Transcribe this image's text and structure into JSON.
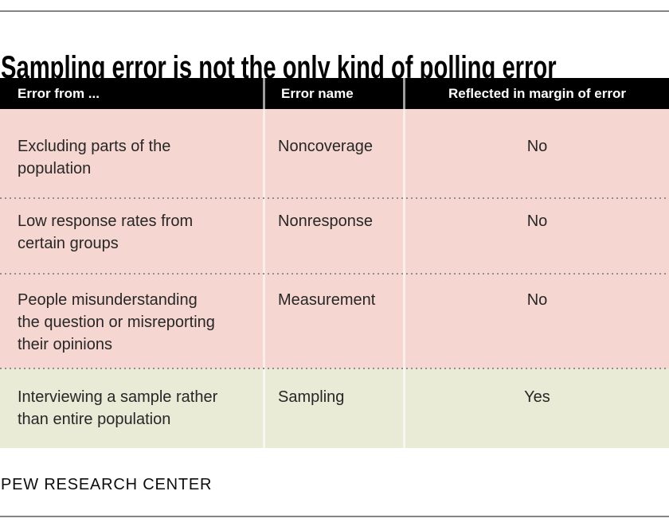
{
  "title": "Sampling error is not the only kind of polling error",
  "footer": "PEW RESEARCH CENTER",
  "table": {
    "header": {
      "error_from": "Error from ...",
      "error_name": "Error name",
      "reflected": "Reflected in margin of error"
    },
    "rows": [
      {
        "error_from": "Excluding parts of the\npopulation",
        "error_name": "Noncoverage",
        "reflected": "No",
        "highlighted": false
      },
      {
        "error_from": "Low response rates from\ncertain groups",
        "error_name": "Nonresponse",
        "reflected": "No",
        "highlighted": false
      },
      {
        "error_from": "People misunderstanding\nthe question or misreporting\ntheir opinions",
        "error_name": "Measurement",
        "reflected": "No",
        "highlighted": false
      },
      {
        "error_from": "Interviewing a sample rather\nthan entire population",
        "error_name": "Sampling",
        "reflected": "Yes",
        "highlighted": true
      }
    ]
  },
  "colors": {
    "row_pink": "#f5d6d1",
    "row_green": "#e9ebd7",
    "header_bg": "#000000",
    "header_text": "#ffffff",
    "body_text": "#272727",
    "rule_gray": "#848484",
    "dot_gray": "#8f8f8f"
  },
  "chart_data": {
    "type": "table",
    "title": "Sampling error is not the only kind of polling error",
    "columns": [
      "Error from ...",
      "Error name",
      "Reflected in margin of error"
    ],
    "rows": [
      [
        "Excluding parts of the population",
        "Noncoverage",
        "No"
      ],
      [
        "Low response rates from certain groups",
        "Nonresponse",
        "No"
      ],
      [
        "People misunderstanding the question or misreporting their opinions",
        "Measurement",
        "No"
      ],
      [
        "Interviewing a sample rather than entire population",
        "Sampling",
        "Yes"
      ]
    ],
    "highlighted_row_index": 3,
    "legend_position": "none",
    "grid": "dotted-row-separators",
    "source_label": "PEW RESEARCH CENTER"
  }
}
